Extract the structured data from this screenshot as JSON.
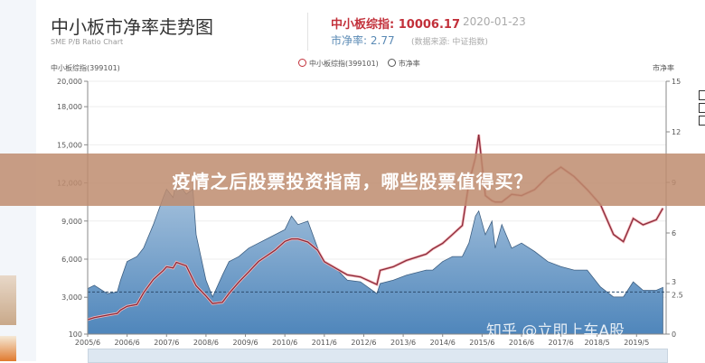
{
  "header": {
    "title": "中小板市净率走势图",
    "subtitle": "SME P/B Ratio Chart",
    "index_label": "中小板综指:",
    "index_value": "10006.17",
    "date": "2020-01-23",
    "pe_label": "市净率:",
    "pe_value": "2.77",
    "source": "(数据来源: 中证指数)"
  },
  "banner": {
    "text": "疫情之后股票投资指南，哪些股票值得买？"
  },
  "watermark": "知乎 @立即上车A股",
  "colors": {
    "index_line": "#c2303a",
    "pe_area": "#5b8fc0",
    "banner": "#be8c6e"
  },
  "chart_data": {
    "type": "line",
    "title": "中小板市净率走势图",
    "subtitle": "SME P/B Ratio Chart",
    "legend": [
      "中小板综指(399101)",
      "市净率"
    ],
    "legend_position": "top",
    "ylabel_left": "中小板综指(399101)",
    "ylabel_right": "市净率",
    "y_left_ticks": [
      "20,000",
      "18,000",
      "15,000",
      "12,000",
      "9,000",
      "6,000",
      "3,000",
      "100"
    ],
    "y_left_tick_values": [
      20000,
      18000,
      15000,
      12000,
      9000,
      6000,
      3000,
      100
    ],
    "y_right_ticks": [
      "15",
      "12",
      "9",
      "6",
      "3",
      "2.5",
      "0"
    ],
    "y_right_tick_values": [
      15,
      12,
      9,
      6,
      3,
      2.5,
      0
    ],
    "x_ticks": [
      "2005/6",
      "2006/6",
      "2007/6",
      "2008/6",
      "2009/6",
      "2010/6",
      "2011/6",
      "2012/6",
      "2013/6",
      "2014/6",
      "2015/6",
      "2016/6",
      "2017/6",
      "2018/5",
      "2019/5"
    ],
    "x_tick_dates": [
      "2005-06",
      "2006-06",
      "2007-06",
      "2008-06",
      "2009-06",
      "2010-06",
      "2011-06",
      "2012-06",
      "2013-06",
      "2014-06",
      "2015-06",
      "2016-06",
      "2017-06",
      "2018-05",
      "2019-05"
    ],
    "xlim": [
      "2005-06",
      "2020-02"
    ],
    "reference_line": 2.5,
    "x": [
      "2005-06",
      "2005-08",
      "2005-12",
      "2006-03",
      "2006-04",
      "2006-06",
      "2006-09",
      "2006-11",
      "2007-02",
      "2007-05",
      "2007-06",
      "2007-08",
      "2007-09",
      "2007-12",
      "2008-02",
      "2008-03",
      "2008-06",
      "2008-08",
      "2008-11",
      "2009-01",
      "2009-04",
      "2009-07",
      "2009-10",
      "2009-12",
      "2010-03",
      "2010-06",
      "2010-08",
      "2010-10",
      "2011-01",
      "2011-04",
      "2011-06",
      "2011-10",
      "2012-01",
      "2012-05",
      "2012-10",
      "2012-11",
      "2013-03",
      "2013-07",
      "2014-01",
      "2014-03",
      "2014-06",
      "2014-09",
      "2014-12",
      "2015-02",
      "2015-04",
      "2015-05",
      "2015-07",
      "2015-09",
      "2015-10",
      "2015-12",
      "2016-03",
      "2016-06",
      "2016-10",
      "2017-02",
      "2017-06",
      "2017-10",
      "2018-02",
      "2018-06",
      "2018-10",
      "2019-01",
      "2019-04",
      "2019-07",
      "2019-11",
      "2020-01"
    ],
    "series": [
      {
        "name": "中小板综指(399101)",
        "axis": "left",
        "style": "line",
        "values": [
          1240,
          1400,
          1590,
          1730,
          2000,
          2290,
          2430,
          3350,
          4410,
          5100,
          5400,
          5300,
          5750,
          5470,
          4410,
          3900,
          3100,
          2500,
          2600,
          3300,
          4200,
          5000,
          5820,
          6180,
          6700,
          7400,
          7590,
          7590,
          7350,
          6700,
          5800,
          5200,
          4760,
          4600,
          4000,
          5120,
          5400,
          5900,
          6400,
          6800,
          7240,
          7940,
          8650,
          12000,
          14000,
          15800,
          11000,
          10600,
          10500,
          10500,
          11100,
          11000,
          11470,
          12500,
          13240,
          12500,
          11470,
          10300,
          7940,
          7380,
          9200,
          8700,
          9100,
          10006
        ]
      },
      {
        "name": "市净率",
        "axis": "right",
        "style": "area",
        "values": [
          2.7,
          2.9,
          2.4,
          2.5,
          3.2,
          4.3,
          4.6,
          5.1,
          6.5,
          8.1,
          8.6,
          8.1,
          9.1,
          8.3,
          8.6,
          5.9,
          3.2,
          2.2,
          3.5,
          4.3,
          4.6,
          5.1,
          5.4,
          5.6,
          5.9,
          6.2,
          7.0,
          6.5,
          6.7,
          5.1,
          4.3,
          3.8,
          3.2,
          3.1,
          2.4,
          3.0,
          3.2,
          3.5,
          3.8,
          3.8,
          4.3,
          4.6,
          4.6,
          5.4,
          7.0,
          7.3,
          5.9,
          6.7,
          5.1,
          6.5,
          5.1,
          5.4,
          4.9,
          4.3,
          4.0,
          3.8,
          3.8,
          2.8,
          2.2,
          2.2,
          3.1,
          2.6,
          2.6,
          2.77
        ]
      }
    ]
  }
}
